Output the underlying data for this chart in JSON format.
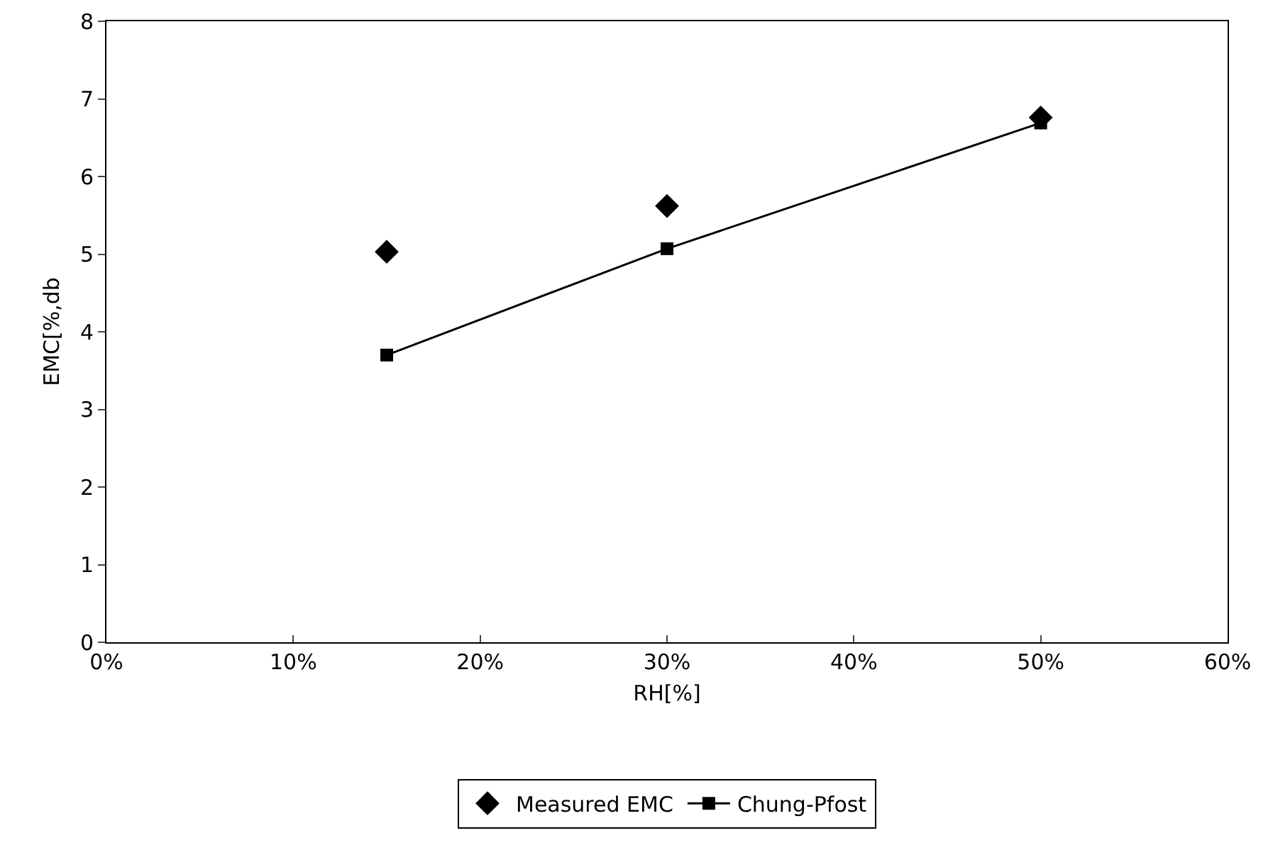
{
  "chart_data": {
    "type": "scatter",
    "xlabel": "RH[%]",
    "ylabel": "EMC[%,db",
    "xlim": [
      0,
      60
    ],
    "xticks": [
      {
        "value": 0,
        "label": "0%"
      },
      {
        "value": 10,
        "label": "10%"
      },
      {
        "value": 20,
        "label": "20%"
      },
      {
        "value": 30,
        "label": "30%"
      },
      {
        "value": 40,
        "label": "40%"
      },
      {
        "value": 50,
        "label": "50%"
      },
      {
        "value": 60,
        "label": "60%"
      }
    ],
    "ylim": [
      0,
      8
    ],
    "yticks": [
      0,
      1,
      2,
      3,
      4,
      5,
      6,
      7,
      8
    ],
    "grid": false,
    "legend": "bottom",
    "series": [
      {
        "name": "Measured EMC",
        "marker": "diamond",
        "color": "#000000",
        "x": [
          15,
          30,
          50
        ],
        "values": [
          5.03,
          5.62,
          6.76
        ]
      },
      {
        "name": "Chung-Pfost",
        "type": "line",
        "marker": "square",
        "color": "#000000",
        "line_style": "solid",
        "x": [
          15,
          30,
          50
        ],
        "values": [
          3.7,
          5.07,
          6.69
        ]
      }
    ]
  }
}
